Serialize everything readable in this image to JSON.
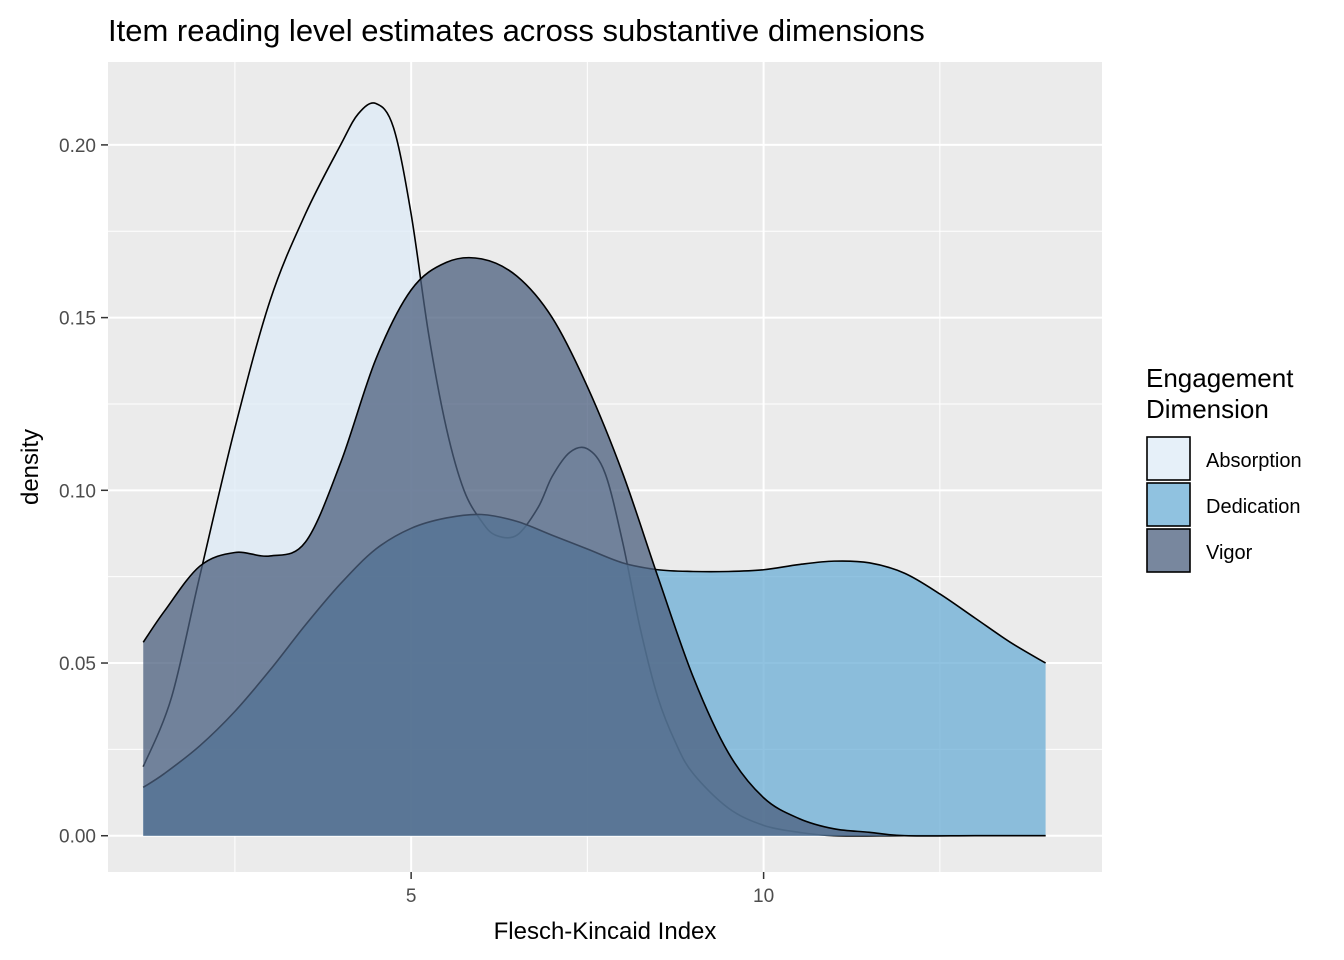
{
  "chart_data": {
    "type": "area",
    "title": "Item reading level estimates across substantive dimensions",
    "xlabel": "Flesch-Kincaid Index",
    "ylabel": "density",
    "xlim": [
      0.7,
      14.8
    ],
    "ylim": [
      -0.0105,
      0.224
    ],
    "x_ticks": [
      5,
      10
    ],
    "x_tick_labels": [
      "5",
      "10"
    ],
    "x_minor_ticks": [
      2.5,
      7.5,
      12.5
    ],
    "y_ticks": [
      0.0,
      0.05,
      0.1,
      0.15,
      0.2
    ],
    "y_tick_labels": [
      "0.00",
      "0.05",
      "0.10",
      "0.15",
      "0.20"
    ],
    "y_minor_ticks": [
      0.025,
      0.075,
      0.125,
      0.175
    ],
    "grid": true,
    "legend": {
      "title": [
        "Engagement",
        "Dimension"
      ],
      "position": "right"
    },
    "series": [
      {
        "name": "Absorption",
        "color": "#deebf7",
        "x": [
          1.2,
          1.6,
          2.0,
          2.5,
          3.0,
          3.5,
          4.0,
          4.25,
          4.5,
          4.75,
          5.0,
          5.25,
          5.5,
          5.75,
          6.0,
          6.2,
          6.5,
          6.8,
          7.0,
          7.25,
          7.5,
          7.75,
          8.0,
          8.25,
          8.5,
          8.75,
          9.0,
          9.5,
          10.0,
          10.5,
          11.0,
          12.0,
          13.0,
          14.0
        ],
        "y": [
          0.02,
          0.04,
          0.075,
          0.118,
          0.155,
          0.18,
          0.2,
          0.209,
          0.212,
          0.205,
          0.18,
          0.145,
          0.118,
          0.1,
          0.091,
          0.087,
          0.087,
          0.095,
          0.104,
          0.111,
          0.112,
          0.105,
          0.085,
          0.06,
          0.04,
          0.027,
          0.018,
          0.008,
          0.003,
          0.001,
          0.0,
          0.0,
          0.0,
          0.0
        ]
      },
      {
        "name": "Dedication",
        "color": "#6baed6",
        "x": [
          1.2,
          1.5,
          2.0,
          2.5,
          3.0,
          3.5,
          4.0,
          4.5,
          5.0,
          5.5,
          6.0,
          6.5,
          7.0,
          7.5,
          8.0,
          8.5,
          9.0,
          9.5,
          10.0,
          10.5,
          11.0,
          11.5,
          12.0,
          12.5,
          13.0,
          13.5,
          14.0
        ],
        "y": [
          0.014,
          0.018,
          0.026,
          0.036,
          0.048,
          0.061,
          0.073,
          0.083,
          0.089,
          0.092,
          0.093,
          0.091,
          0.087,
          0.083,
          0.079,
          0.077,
          0.0765,
          0.0765,
          0.077,
          0.0785,
          0.0795,
          0.079,
          0.076,
          0.07,
          0.063,
          0.056,
          0.05
        ]
      },
      {
        "name": "Vigor",
        "color": "#4b5f7e",
        "x": [
          1.2,
          1.5,
          2.0,
          2.5,
          3.0,
          3.5,
          4.0,
          4.5,
          5.0,
          5.5,
          6.0,
          6.5,
          7.0,
          7.5,
          8.0,
          8.5,
          9.0,
          9.5,
          10.0,
          10.5,
          11.0,
          11.5,
          12.0,
          13.0,
          14.0
        ],
        "y": [
          0.056,
          0.065,
          0.078,
          0.082,
          0.081,
          0.085,
          0.108,
          0.138,
          0.158,
          0.166,
          0.167,
          0.162,
          0.15,
          0.13,
          0.105,
          0.075,
          0.046,
          0.024,
          0.011,
          0.005,
          0.002,
          0.001,
          0.0,
          0.0,
          0.0
        ]
      }
    ]
  }
}
